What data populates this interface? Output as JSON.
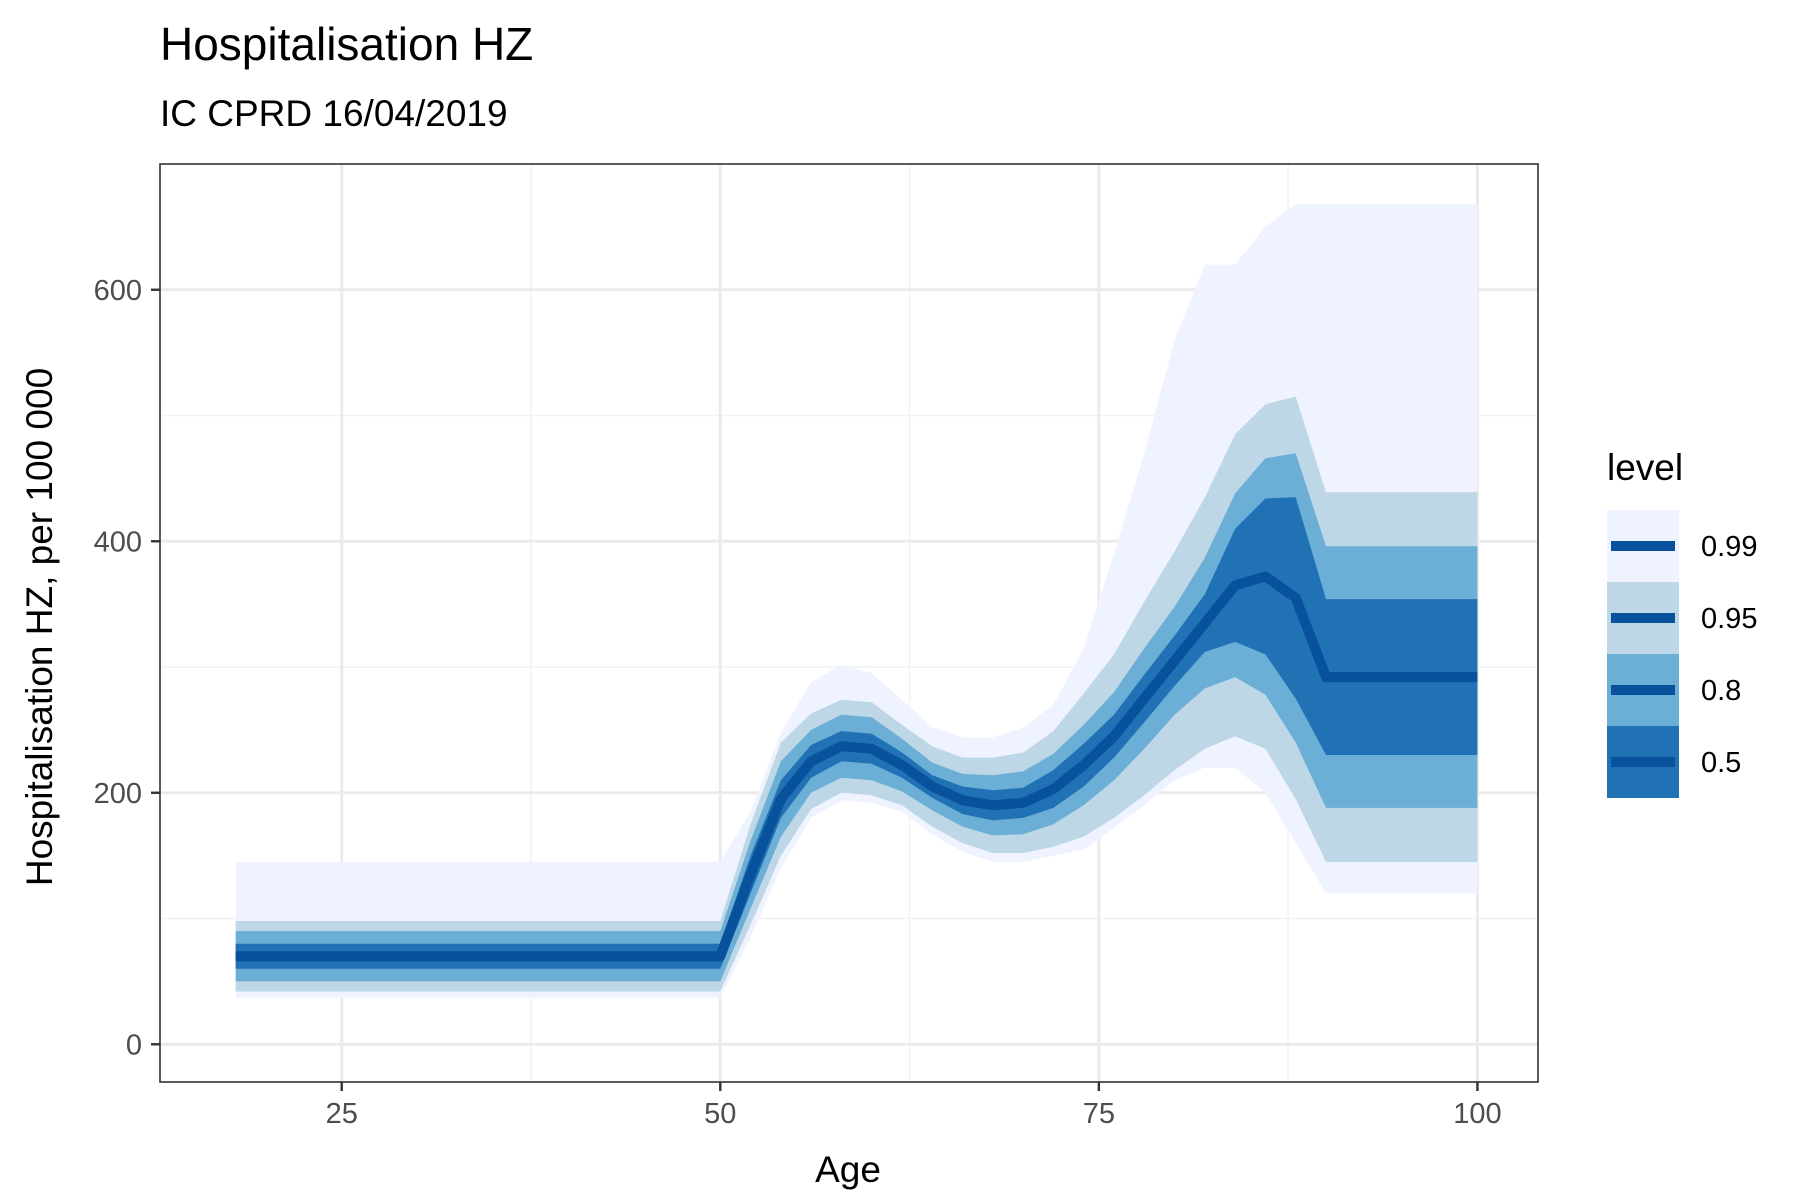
{
  "chart_data": {
    "type": "area",
    "title": "Hospitalisation HZ",
    "subtitle": "IC CPRD 16/04/2019",
    "xlabel": "Age",
    "ylabel": "Hospitalisation HZ, per 100 000",
    "xlim": [
      13,
      104
    ],
    "ylim": [
      -30,
      700
    ],
    "x_ticks": [
      25,
      50,
      75,
      100
    ],
    "y_ticks": [
      0,
      200,
      400,
      600
    ],
    "grid": true,
    "legend": {
      "title": "level",
      "position": "right",
      "entries": [
        "0.99",
        "0.95",
        "0.8",
        "0.5"
      ]
    },
    "colors": {
      "band_0.99": "#eff3ff",
      "band_0.95": "#bdd7e7",
      "band_0.8": "#6baed6",
      "band_0.5": "#2171b5",
      "median_line": "#08519c",
      "panel_border": "#333333",
      "grid_major": "#ebebeb",
      "grid_minor": "#f2f2f2"
    },
    "x": [
      18,
      50,
      52,
      54,
      56,
      58,
      60,
      62,
      64,
      66,
      68,
      70,
      72,
      74,
      76,
      78,
      80,
      82,
      84,
      86,
      88,
      90,
      100
    ],
    "median": [
      70,
      70,
      135,
      195,
      225,
      237,
      235,
      222,
      205,
      194,
      190,
      192,
      203,
      222,
      245,
      275,
      305,
      335,
      365,
      372,
      355,
      292,
      292
    ],
    "bands": [
      {
        "level": "0.99",
        "lower": [
          37,
          37,
          85,
          140,
          180,
          194,
          192,
          185,
          167,
          153,
          145,
          145,
          150,
          155,
          172,
          190,
          210,
          220,
          220,
          200,
          160,
          120,
          120
        ],
        "upper": [
          145,
          145,
          185,
          248,
          288,
          302,
          295,
          274,
          252,
          244,
          244,
          252,
          270,
          315,
          390,
          470,
          560,
          620,
          620,
          650,
          668,
          668,
          668
        ]
      },
      {
        "level": "0.95",
        "lower": [
          42,
          42,
          95,
          150,
          187,
          200,
          198,
          190,
          173,
          160,
          152,
          152,
          157,
          165,
          180,
          198,
          218,
          235,
          245,
          235,
          195,
          145,
          145
        ]
      },
      {
        "level": "0.8",
        "lower": [
          50,
          50,
          108,
          165,
          200,
          212,
          210,
          201,
          186,
          173,
          166,
          167,
          175,
          190,
          210,
          235,
          262,
          283,
          292,
          278,
          240,
          188,
          188
        ]
      },
      {
        "level": "0.5",
        "lower": [
          60,
          60,
          120,
          180,
          212,
          225,
          223,
          212,
          196,
          183,
          178,
          180,
          188,
          205,
          228,
          256,
          285,
          312,
          320,
          310,
          275,
          230,
          230
        ]
      }
    ]
  }
}
